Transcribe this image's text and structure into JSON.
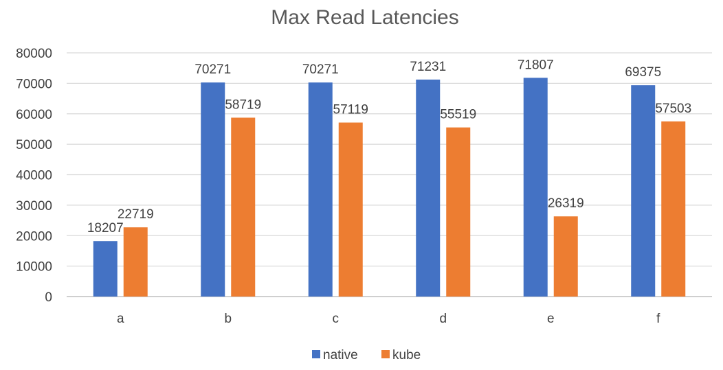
{
  "chart_data": {
    "type": "bar",
    "title": "Max Read Latencies",
    "categories": [
      "a",
      "b",
      "c",
      "d",
      "e",
      "f"
    ],
    "series": [
      {
        "name": "native",
        "color": "#4472C4",
        "values": [
          18207,
          70271,
          70271,
          71231,
          71807,
          69375
        ]
      },
      {
        "name": "kube",
        "color": "#ED7D31",
        "values": [
          22719,
          58719,
          57119,
          55519,
          26319,
          57503
        ]
      }
    ],
    "ylim": [
      0,
      80000
    ],
    "yticks": [
      0,
      10000,
      20000,
      30000,
      40000,
      50000,
      60000,
      70000,
      80000
    ],
    "grid": true,
    "legend_position": "bottom"
  }
}
